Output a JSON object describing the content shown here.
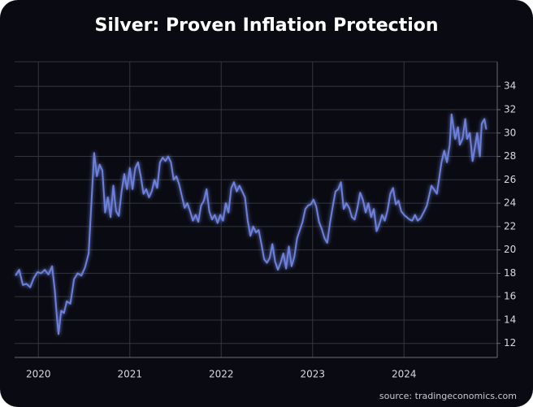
{
  "chart_data": {
    "type": "line",
    "title": "Silver: Proven Inflation Protection",
    "source": "source: tradingeconomics.com",
    "color": "#6d80dc",
    "grid": true,
    "y_axis_side": "right",
    "xlim": [
      2019.74,
      2025.02
    ],
    "xticks": [
      2020,
      2021,
      2022,
      2023,
      2024
    ],
    "ylim": [
      10.8,
      36.1
    ],
    "yticks": [
      12,
      14,
      16,
      18,
      20,
      22,
      24,
      26,
      28,
      30,
      32,
      34
    ],
    "x": [
      2019.75,
      2019.79,
      2019.83,
      2019.87,
      2019.91,
      2019.95,
      2019.99,
      2020.03,
      2020.07,
      2020.11,
      2020.15,
      2020.18,
      2020.2,
      2020.22,
      2020.25,
      2020.28,
      2020.31,
      2020.35,
      2020.39,
      2020.43,
      2020.47,
      2020.51,
      2020.55,
      2020.58,
      2020.61,
      2020.64,
      2020.67,
      2020.7,
      2020.73,
      2020.76,
      2020.79,
      2020.82,
      2020.85,
      2020.88,
      2020.91,
      2020.94,
      2020.97,
      2021.0,
      2021.03,
      2021.06,
      2021.09,
      2021.12,
      2021.15,
      2021.18,
      2021.21,
      2021.24,
      2021.27,
      2021.3,
      2021.33,
      2021.36,
      2021.39,
      2021.42,
      2021.45,
      2021.48,
      2021.51,
      2021.54,
      2021.57,
      2021.6,
      2021.63,
      2021.66,
      2021.69,
      2021.72,
      2021.75,
      2021.78,
      2021.81,
      2021.84,
      2021.87,
      2021.9,
      2021.93,
      2021.96,
      2021.99,
      2022.02,
      2022.05,
      2022.08,
      2022.11,
      2022.14,
      2022.17,
      2022.2,
      2022.23,
      2022.26,
      2022.29,
      2022.32,
      2022.35,
      2022.38,
      2022.41,
      2022.44,
      2022.47,
      2022.5,
      2022.53,
      2022.56,
      2022.59,
      2022.62,
      2022.65,
      2022.68,
      2022.71,
      2022.74,
      2022.77,
      2022.8,
      2022.83,
      2022.86,
      2022.89,
      2022.92,
      2022.95,
      2022.98,
      2023.01,
      2023.04,
      2023.07,
      2023.1,
      2023.13,
      2023.16,
      2023.19,
      2023.22,
      2023.25,
      2023.28,
      2023.31,
      2023.34,
      2023.37,
      2023.4,
      2023.43,
      2023.46,
      2023.49,
      2023.52,
      2023.55,
      2023.58,
      2023.61,
      2023.64,
      2023.67,
      2023.7,
      2023.73,
      2023.76,
      2023.79,
      2023.82,
      2023.85,
      2023.88,
      2023.91,
      2023.94,
      2023.97,
      2024.0,
      2024.03,
      2024.06,
      2024.09,
      2024.12,
      2024.15,
      2024.18,
      2024.22,
      2024.25,
      2024.3,
      2024.36,
      2024.41,
      2024.44,
      2024.47,
      2024.5,
      2024.52,
      2024.56,
      2024.59,
      2024.61,
      2024.64,
      2024.67,
      2024.69,
      2024.72,
      2024.75,
      2024.77,
      2024.8,
      2024.83,
      2024.85,
      2024.88,
      2024.9
    ],
    "values": [
      17.8,
      18.3,
      17.0,
      17.1,
      16.8,
      17.6,
      18.1,
      18.0,
      18.3,
      17.9,
      18.6,
      16.5,
      14.5,
      12.8,
      14.8,
      14.6,
      15.6,
      15.4,
      17.5,
      18.0,
      17.8,
      18.5,
      19.7,
      24.0,
      28.3,
      26.3,
      27.3,
      26.8,
      23.2,
      24.5,
      22.8,
      25.5,
      23.3,
      22.9,
      25.0,
      26.5,
      25.2,
      27.0,
      25.2,
      27.0,
      27.5,
      26.3,
      24.8,
      25.2,
      24.5,
      25.0,
      26.0,
      25.3,
      27.5,
      27.9,
      27.6,
      28.0,
      27.5,
      26.0,
      26.3,
      25.6,
      24.6,
      23.6,
      24.0,
      23.3,
      22.5,
      23.0,
      22.4,
      23.8,
      24.2,
      25.2,
      23.3,
      22.6,
      23.0,
      22.3,
      23.0,
      22.5,
      24.0,
      23.2,
      25.3,
      25.8,
      25.0,
      25.5,
      25.0,
      24.5,
      22.5,
      21.2,
      22.0,
      21.5,
      21.7,
      20.5,
      19.2,
      18.9,
      19.3,
      20.5,
      19.0,
      18.3,
      18.9,
      19.7,
      18.4,
      20.3,
      18.6,
      19.4,
      21.0,
      21.7,
      22.4,
      23.5,
      23.8,
      23.9,
      24.3,
      23.7,
      22.4,
      21.8,
      21.0,
      20.6,
      22.3,
      23.7,
      25.0,
      25.2,
      25.8,
      23.5,
      24.0,
      23.6,
      22.8,
      22.6,
      23.6,
      24.9,
      24.3,
      23.2,
      24.0,
      22.8,
      23.5,
      21.6,
      22.2,
      23.0,
      22.5,
      23.4,
      24.8,
      25.3,
      23.9,
      24.2,
      23.3,
      23.0,
      22.8,
      22.6,
      22.5,
      23.0,
      22.5,
      22.7,
      23.3,
      23.8,
      25.5,
      24.8,
      27.5,
      28.5,
      27.5,
      29.0,
      31.6,
      29.5,
      30.5,
      29.0,
      29.5,
      31.2,
      29.5,
      30.0,
      27.6,
      28.5,
      30.0,
      28.0,
      30.8,
      31.2,
      30.3
    ]
  }
}
